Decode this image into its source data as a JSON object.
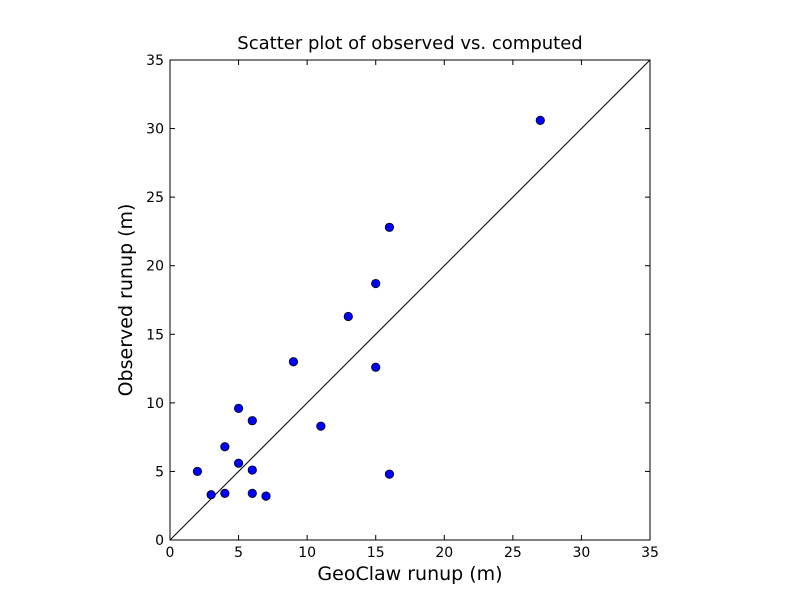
{
  "chart_data": {
    "type": "scatter",
    "title": "Scatter plot of observed vs. computed",
    "xlabel": "GeoClaw runup (m)",
    "ylabel": "Observed runup (m)",
    "xlim": [
      0,
      35
    ],
    "ylim": [
      0,
      35
    ],
    "xticks": [
      "0",
      "5",
      "10",
      "15",
      "20",
      "25",
      "30",
      "35"
    ],
    "yticks": [
      "0",
      "5",
      "10",
      "15",
      "20",
      "25",
      "30",
      "35"
    ],
    "grid": false,
    "reference_line": {
      "from": [
        0,
        0
      ],
      "to": [
        35,
        35
      ],
      "color": "#000000"
    },
    "series": [
      {
        "color": "#0000ff",
        "points": [
          [
            2,
            5.0
          ],
          [
            3,
            3.3
          ],
          [
            4,
            3.4
          ],
          [
            4,
            6.8
          ],
          [
            5,
            5.6
          ],
          [
            5,
            9.6
          ],
          [
            6,
            5.1
          ],
          [
            6,
            3.4
          ],
          [
            6,
            8.7
          ],
          [
            7,
            3.2
          ],
          [
            9,
            13.0
          ],
          [
            11,
            8.3
          ],
          [
            13,
            16.3
          ],
          [
            15,
            18.7
          ],
          [
            15,
            12.6
          ],
          [
            16,
            22.8
          ],
          [
            16,
            4.8
          ],
          [
            27,
            30.6
          ]
        ]
      }
    ]
  }
}
